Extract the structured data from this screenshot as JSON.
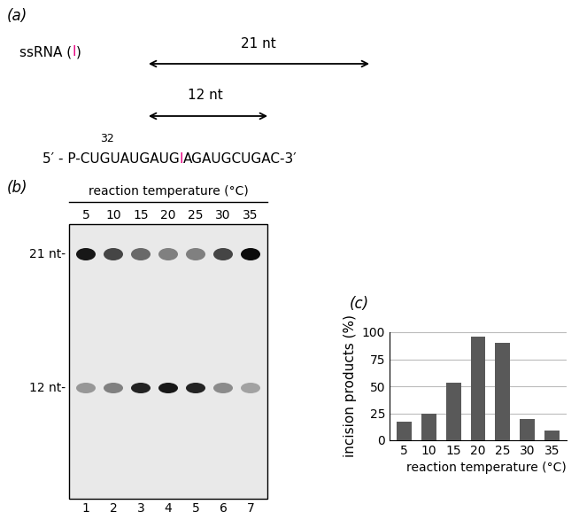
{
  "panels": {
    "a": "(a)",
    "b": "(b)",
    "c": "(c)"
  },
  "diagram": {
    "label_parts": [
      "ssRNA (",
      "I",
      ")"
    ],
    "long_arrow": "21 nt",
    "short_arrow": "12 nt",
    "isotope": "32",
    "sequence_parts": [
      "5′ - P-CUGUAUGAUG",
      "I",
      "AGAUGCUGAC-3′"
    ],
    "mark_color": "#e6007e"
  },
  "gel": {
    "header": "reaction temperature (°C)",
    "lanes": [
      5,
      10,
      15,
      20,
      25,
      30,
      35
    ],
    "lane_numbers": [
      1,
      2,
      3,
      4,
      5,
      6,
      7
    ],
    "band_labels": [
      "21 nt-",
      "12 nt-"
    ],
    "band_21": [
      0.9,
      0.7,
      0.55,
      0.45,
      0.45,
      0.7,
      0.95
    ],
    "band_12": [
      0.35,
      0.45,
      0.85,
      0.9,
      0.85,
      0.4,
      0.3
    ]
  },
  "chart_data": {
    "type": "bar",
    "categories": [
      "5",
      "10",
      "15",
      "20",
      "25",
      "30",
      "35"
    ],
    "values": [
      17,
      25,
      53,
      96,
      90,
      20,
      9
    ],
    "color": "#595959",
    "x_label": "reaction temperature (°C)",
    "y_label": "incision products (%)",
    "ylim": [
      0,
      100
    ],
    "yticks": [
      0,
      25,
      50,
      75,
      100
    ],
    "grid": true
  }
}
